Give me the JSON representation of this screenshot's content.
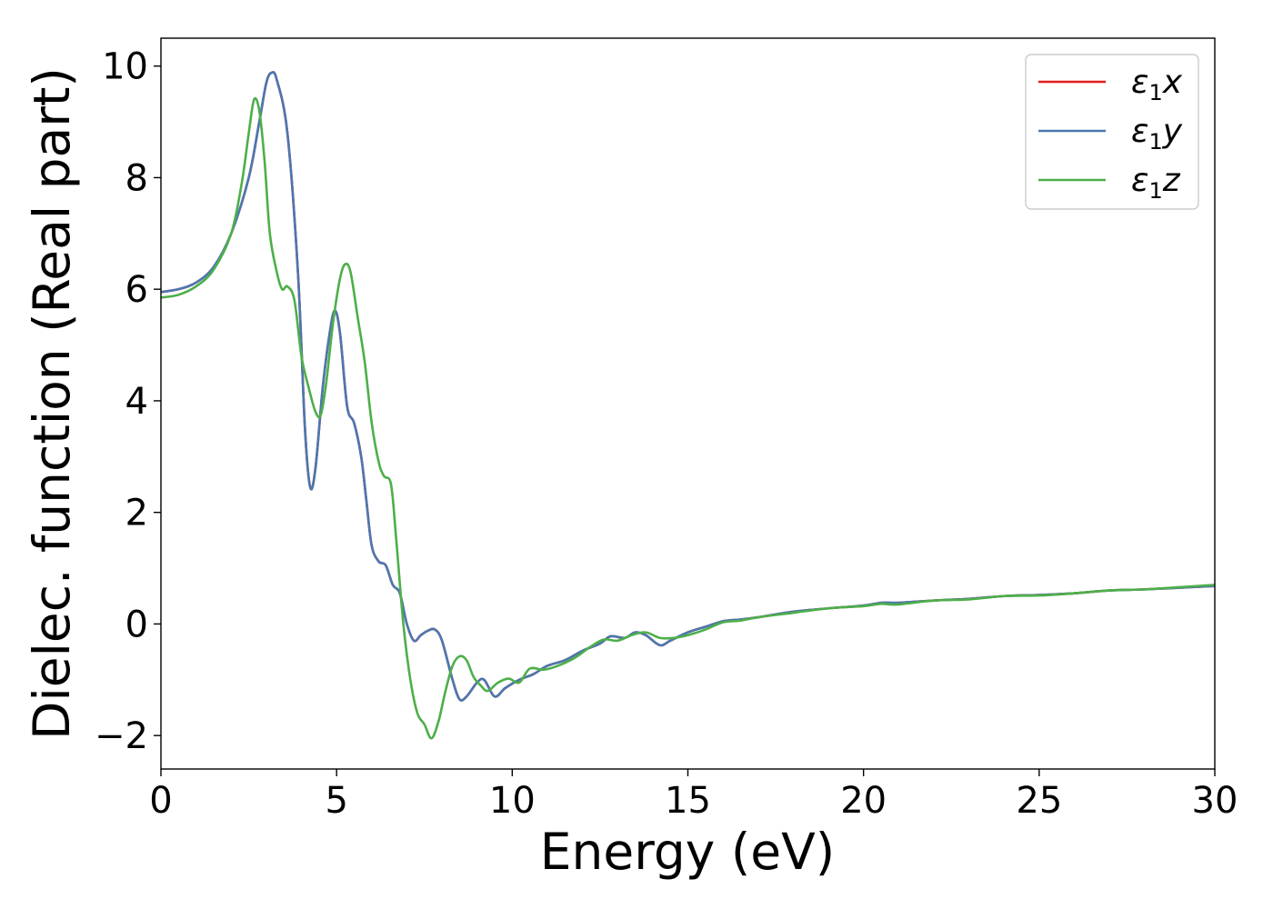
{
  "chart_data": {
    "type": "line",
    "xlabel": "Energy (eV)",
    "ylabel": "Dielec. function (Real part)",
    "xlim": [
      0,
      30
    ],
    "ylim": [
      -2.6,
      10.5
    ],
    "xticks": [
      0,
      5,
      10,
      15,
      20,
      25,
      30
    ],
    "xtick_labels": [
      "0",
      "5",
      "10",
      "15",
      "20",
      "25",
      "30"
    ],
    "yticks": [
      -2,
      0,
      2,
      4,
      6,
      8,
      10
    ],
    "ytick_labels": [
      "−2",
      "0",
      "2",
      "4",
      "6",
      "8",
      "10"
    ],
    "grid": false,
    "legend_position": "top-right",
    "series": [
      {
        "name": "ε1x",
        "legend_main": "ε",
        "legend_sub": "1",
        "legend_suffix": "x",
        "color": "#e41a1c",
        "points": [
          [
            0,
            5.95
          ],
          [
            0.5,
            6.0
          ],
          [
            1.0,
            6.12
          ],
          [
            1.5,
            6.4
          ],
          [
            2.0,
            7.0
          ],
          [
            2.5,
            8.0
          ],
          [
            2.8,
            9.0
          ],
          [
            3.0,
            9.7
          ],
          [
            3.15,
            9.88
          ],
          [
            3.3,
            9.75
          ],
          [
            3.6,
            8.8
          ],
          [
            3.9,
            6.3
          ],
          [
            4.1,
            3.5
          ],
          [
            4.25,
            2.45
          ],
          [
            4.4,
            2.8
          ],
          [
            4.6,
            4.2
          ],
          [
            4.8,
            5.2
          ],
          [
            4.95,
            5.62
          ],
          [
            5.1,
            5.2
          ],
          [
            5.3,
            3.9
          ],
          [
            5.5,
            3.6
          ],
          [
            5.7,
            3.0
          ],
          [
            5.85,
            2.2
          ],
          [
            6.0,
            1.4
          ],
          [
            6.2,
            1.12
          ],
          [
            6.4,
            1.05
          ],
          [
            6.6,
            0.7
          ],
          [
            6.8,
            0.55
          ],
          [
            7.0,
            0.0
          ],
          [
            7.2,
            -0.3
          ],
          [
            7.4,
            -0.2
          ],
          [
            7.6,
            -0.12
          ],
          [
            7.8,
            -0.1
          ],
          [
            8.0,
            -0.3
          ],
          [
            8.3,
            -1.0
          ],
          [
            8.5,
            -1.35
          ],
          [
            8.7,
            -1.3
          ],
          [
            9.0,
            -1.05
          ],
          [
            9.2,
            -1.0
          ],
          [
            9.5,
            -1.3
          ],
          [
            9.8,
            -1.15
          ],
          [
            10.2,
            -1.0
          ],
          [
            10.6,
            -0.9
          ],
          [
            11.0,
            -0.75
          ],
          [
            11.5,
            -0.65
          ],
          [
            12.0,
            -0.48
          ],
          [
            12.5,
            -0.35
          ],
          [
            12.8,
            -0.22
          ],
          [
            13.2,
            -0.25
          ],
          [
            13.5,
            -0.15
          ],
          [
            13.8,
            -0.2
          ],
          [
            14.2,
            -0.38
          ],
          [
            14.5,
            -0.3
          ],
          [
            15.0,
            -0.15
          ],
          [
            15.5,
            -0.05
          ],
          [
            16.0,
            0.05
          ],
          [
            16.5,
            0.08
          ],
          [
            17.0,
            0.12
          ],
          [
            18.0,
            0.22
          ],
          [
            19.0,
            0.28
          ],
          [
            20.0,
            0.33
          ],
          [
            20.5,
            0.38
          ],
          [
            21.0,
            0.38
          ],
          [
            22.0,
            0.42
          ],
          [
            23.0,
            0.45
          ],
          [
            24.0,
            0.5
          ],
          [
            25.0,
            0.52
          ],
          [
            26.0,
            0.55
          ],
          [
            27.0,
            0.6
          ],
          [
            28.0,
            0.62
          ],
          [
            29.0,
            0.65
          ],
          [
            30.0,
            0.68
          ]
        ]
      },
      {
        "name": "ε1y",
        "legend_main": "ε",
        "legend_sub": "1",
        "legend_suffix": "y",
        "color": "#4a78b0",
        "points": [
          [
            0,
            5.95
          ],
          [
            0.5,
            6.0
          ],
          [
            1.0,
            6.12
          ],
          [
            1.5,
            6.4
          ],
          [
            2.0,
            7.0
          ],
          [
            2.5,
            8.0
          ],
          [
            2.8,
            9.0
          ],
          [
            3.0,
            9.7
          ],
          [
            3.15,
            9.88
          ],
          [
            3.3,
            9.75
          ],
          [
            3.6,
            8.8
          ],
          [
            3.9,
            6.3
          ],
          [
            4.1,
            3.5
          ],
          [
            4.25,
            2.45
          ],
          [
            4.4,
            2.8
          ],
          [
            4.6,
            4.2
          ],
          [
            4.8,
            5.2
          ],
          [
            4.95,
            5.62
          ],
          [
            5.1,
            5.2
          ],
          [
            5.3,
            3.9
          ],
          [
            5.5,
            3.6
          ],
          [
            5.7,
            3.0
          ],
          [
            5.85,
            2.2
          ],
          [
            6.0,
            1.4
          ],
          [
            6.2,
            1.12
          ],
          [
            6.4,
            1.05
          ],
          [
            6.6,
            0.7
          ],
          [
            6.8,
            0.55
          ],
          [
            7.0,
            0.0
          ],
          [
            7.2,
            -0.3
          ],
          [
            7.4,
            -0.2
          ],
          [
            7.6,
            -0.12
          ],
          [
            7.8,
            -0.1
          ],
          [
            8.0,
            -0.3
          ],
          [
            8.3,
            -1.0
          ],
          [
            8.5,
            -1.35
          ],
          [
            8.7,
            -1.3
          ],
          [
            9.0,
            -1.05
          ],
          [
            9.2,
            -1.0
          ],
          [
            9.5,
            -1.3
          ],
          [
            9.8,
            -1.15
          ],
          [
            10.2,
            -1.0
          ],
          [
            10.6,
            -0.9
          ],
          [
            11.0,
            -0.75
          ],
          [
            11.5,
            -0.65
          ],
          [
            12.0,
            -0.48
          ],
          [
            12.5,
            -0.35
          ],
          [
            12.8,
            -0.22
          ],
          [
            13.2,
            -0.25
          ],
          [
            13.5,
            -0.15
          ],
          [
            13.8,
            -0.2
          ],
          [
            14.2,
            -0.38
          ],
          [
            14.5,
            -0.3
          ],
          [
            15.0,
            -0.15
          ],
          [
            15.5,
            -0.05
          ],
          [
            16.0,
            0.05
          ],
          [
            16.5,
            0.08
          ],
          [
            17.0,
            0.12
          ],
          [
            18.0,
            0.22
          ],
          [
            19.0,
            0.28
          ],
          [
            20.0,
            0.33
          ],
          [
            20.5,
            0.38
          ],
          [
            21.0,
            0.38
          ],
          [
            22.0,
            0.42
          ],
          [
            23.0,
            0.45
          ],
          [
            24.0,
            0.5
          ],
          [
            25.0,
            0.52
          ],
          [
            26.0,
            0.55
          ],
          [
            27.0,
            0.6
          ],
          [
            28.0,
            0.62
          ],
          [
            29.0,
            0.65
          ],
          [
            30.0,
            0.68
          ]
        ]
      },
      {
        "name": "ε1z",
        "legend_main": "ε",
        "legend_sub": "1",
        "legend_suffix": "z",
        "color": "#4daf4a",
        "points": [
          [
            0,
            5.85
          ],
          [
            0.5,
            5.9
          ],
          [
            1.0,
            6.05
          ],
          [
            1.5,
            6.35
          ],
          [
            2.0,
            7.0
          ],
          [
            2.3,
            7.9
          ],
          [
            2.5,
            8.8
          ],
          [
            2.65,
            9.4
          ],
          [
            2.8,
            9.2
          ],
          [
            2.95,
            8.3
          ],
          [
            3.1,
            7.0
          ],
          [
            3.3,
            6.3
          ],
          [
            3.45,
            6.0
          ],
          [
            3.6,
            6.05
          ],
          [
            3.8,
            5.8
          ],
          [
            4.0,
            4.8
          ],
          [
            4.2,
            4.25
          ],
          [
            4.4,
            3.8
          ],
          [
            4.55,
            3.75
          ],
          [
            4.7,
            4.3
          ],
          [
            4.9,
            5.4
          ],
          [
            5.1,
            6.2
          ],
          [
            5.25,
            6.45
          ],
          [
            5.4,
            6.3
          ],
          [
            5.6,
            5.5
          ],
          [
            5.8,
            4.7
          ],
          [
            6.0,
            3.6
          ],
          [
            6.2,
            2.9
          ],
          [
            6.35,
            2.65
          ],
          [
            6.55,
            2.5
          ],
          [
            6.7,
            1.5
          ],
          [
            6.9,
            0.0
          ],
          [
            7.1,
            -1.0
          ],
          [
            7.3,
            -1.6
          ],
          [
            7.5,
            -1.8
          ],
          [
            7.7,
            -2.05
          ],
          [
            7.9,
            -1.75
          ],
          [
            8.1,
            -1.2
          ],
          [
            8.3,
            -0.75
          ],
          [
            8.5,
            -0.58
          ],
          [
            8.7,
            -0.65
          ],
          [
            8.9,
            -0.95
          ],
          [
            9.1,
            -1.1
          ],
          [
            9.3,
            -1.2
          ],
          [
            9.6,
            -1.05
          ],
          [
            9.9,
            -0.98
          ],
          [
            10.2,
            -1.05
          ],
          [
            10.5,
            -0.8
          ],
          [
            10.9,
            -0.82
          ],
          [
            11.3,
            -0.75
          ],
          [
            11.8,
            -0.6
          ],
          [
            12.2,
            -0.42
          ],
          [
            12.6,
            -0.28
          ],
          [
            13.0,
            -0.3
          ],
          [
            13.4,
            -0.2
          ],
          [
            13.8,
            -0.15
          ],
          [
            14.2,
            -0.25
          ],
          [
            14.6,
            -0.25
          ],
          [
            15.0,
            -0.2
          ],
          [
            15.5,
            -0.1
          ],
          [
            16.0,
            0.03
          ],
          [
            16.5,
            0.06
          ],
          [
            17.0,
            0.12
          ],
          [
            18.0,
            0.2
          ],
          [
            19.0,
            0.28
          ],
          [
            20.0,
            0.32
          ],
          [
            20.5,
            0.36
          ],
          [
            21.0,
            0.35
          ],
          [
            22.0,
            0.42
          ],
          [
            23.0,
            0.44
          ],
          [
            24.0,
            0.5
          ],
          [
            25.0,
            0.51
          ],
          [
            26.0,
            0.55
          ],
          [
            27.0,
            0.6
          ],
          [
            28.0,
            0.62
          ],
          [
            29.0,
            0.66
          ],
          [
            30.0,
            0.7
          ]
        ]
      }
    ]
  }
}
